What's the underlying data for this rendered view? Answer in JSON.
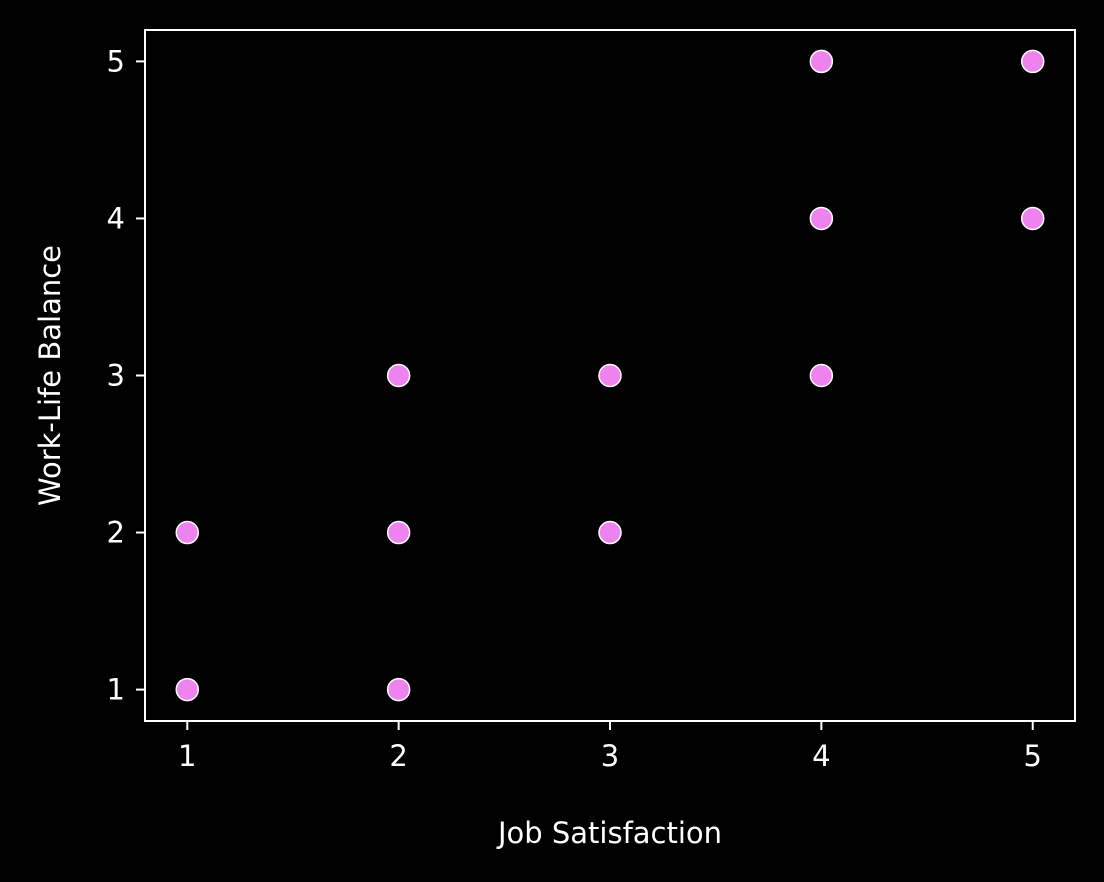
{
  "chart_data": {
    "type": "scatter",
    "title": "",
    "xlabel": "Job Satisfaction",
    "ylabel": "Work-Life Balance",
    "xlim": [
      0.8,
      5.2
    ],
    "ylim": [
      0.8,
      5.2
    ],
    "xticks": [
      1,
      2,
      3,
      4,
      5
    ],
    "yticks": [
      1,
      2,
      3,
      4,
      5
    ],
    "xtick_labels": [
      "1",
      "2",
      "3",
      "4",
      "5"
    ],
    "ytick_labels": [
      "1",
      "2",
      "3",
      "4",
      "5"
    ],
    "grid": false,
    "legend": "none",
    "series": [
      {
        "points": [
          {
            "x": 1,
            "y": 1
          },
          {
            "x": 1,
            "y": 2
          },
          {
            "x": 2,
            "y": 1
          },
          {
            "x": 2,
            "y": 2
          },
          {
            "x": 2,
            "y": 3
          },
          {
            "x": 3,
            "y": 2
          },
          {
            "x": 3,
            "y": 3
          },
          {
            "x": 4,
            "y": 3
          },
          {
            "x": 4,
            "y": 4
          },
          {
            "x": 4,
            "y": 5
          },
          {
            "x": 5,
            "y": 4
          },
          {
            "x": 5,
            "y": 5
          }
        ]
      }
    ],
    "colors": {
      "background": "#000000",
      "axes": "#ffffff",
      "text": "#ffffff",
      "marker_fill": "#ee82ee",
      "marker_edge": "#ffffff"
    }
  }
}
